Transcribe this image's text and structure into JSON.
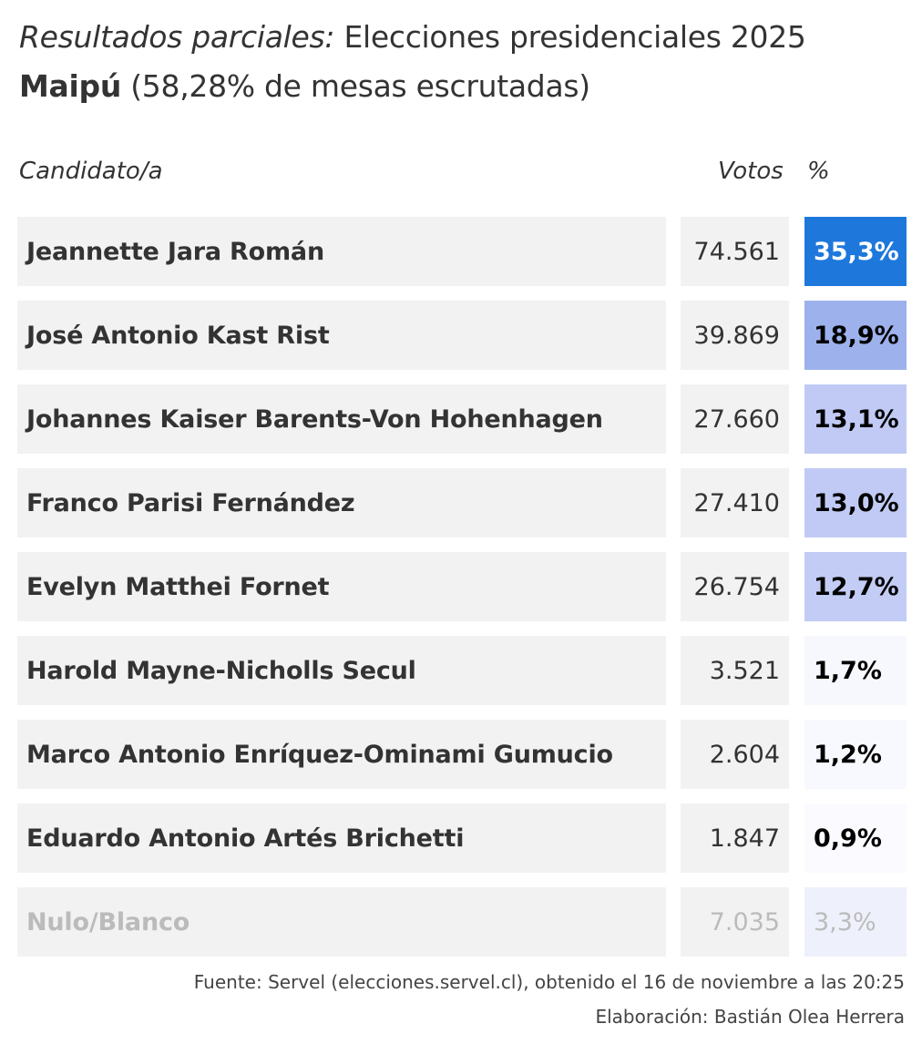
{
  "title": {
    "italic": "Resultados parciales:",
    "rest": " Elecciones presidenciales 2025"
  },
  "subtitle": {
    "bold": "Maipú",
    "rest": " (58,28% de mesas escrutadas)"
  },
  "headers": {
    "candidate": "Candidato/a",
    "votes": "Votos",
    "pct": "%"
  },
  "rows": [
    {
      "name": "Jeannette Jara Román",
      "votes": "74.561",
      "pct": "35,3%",
      "bg": "#1e78dc",
      "fg": "#ffffff"
    },
    {
      "name": "José Antonio Kast Rist",
      "votes": "39.869",
      "pct": "18,9%",
      "bg": "#9db1ec",
      "fg": "#000000"
    },
    {
      "name": "Johannes Kaiser Barents-Von Hohenhagen",
      "votes": "27.660",
      "pct": "13,1%",
      "bg": "#c0caf4",
      "fg": "#000000"
    },
    {
      "name": "Franco Parisi Fernández",
      "votes": "27.410",
      "pct": "13,0%",
      "bg": "#c0caf4",
      "fg": "#000000"
    },
    {
      "name": "Evelyn Matthei Fornet",
      "votes": "26.754",
      "pct": "12,7%",
      "bg": "#c2ccf4",
      "fg": "#000000"
    },
    {
      "name": "Harold Mayne-Nicholls Secul",
      "votes": "3.521",
      "pct": "1,7%",
      "bg": "#f7f8fe",
      "fg": "#000000"
    },
    {
      "name": "Marco Antonio Enríquez-Ominami Gumucio",
      "votes": "2.604",
      "pct": "1,2%",
      "bg": "#f8f9fe",
      "fg": "#000000"
    },
    {
      "name": "Eduardo Antonio Artés Brichetti",
      "votes": "1.847",
      "pct": "0,9%",
      "bg": "#fbfbff",
      "fg": "#000000"
    },
    {
      "name": "Nulo/Blanco",
      "votes": "7.035",
      "pct": "3,3%",
      "bg": "#eef1fc",
      "fg": "#bbbbbb",
      "muted": true
    }
  ],
  "footer": {
    "source": "Fuente: Servel (elecciones.servel.cl), obtenido el 16 de noviembre a las 20:25",
    "credit": "Elaboración: Bastián Olea Herrera"
  }
}
